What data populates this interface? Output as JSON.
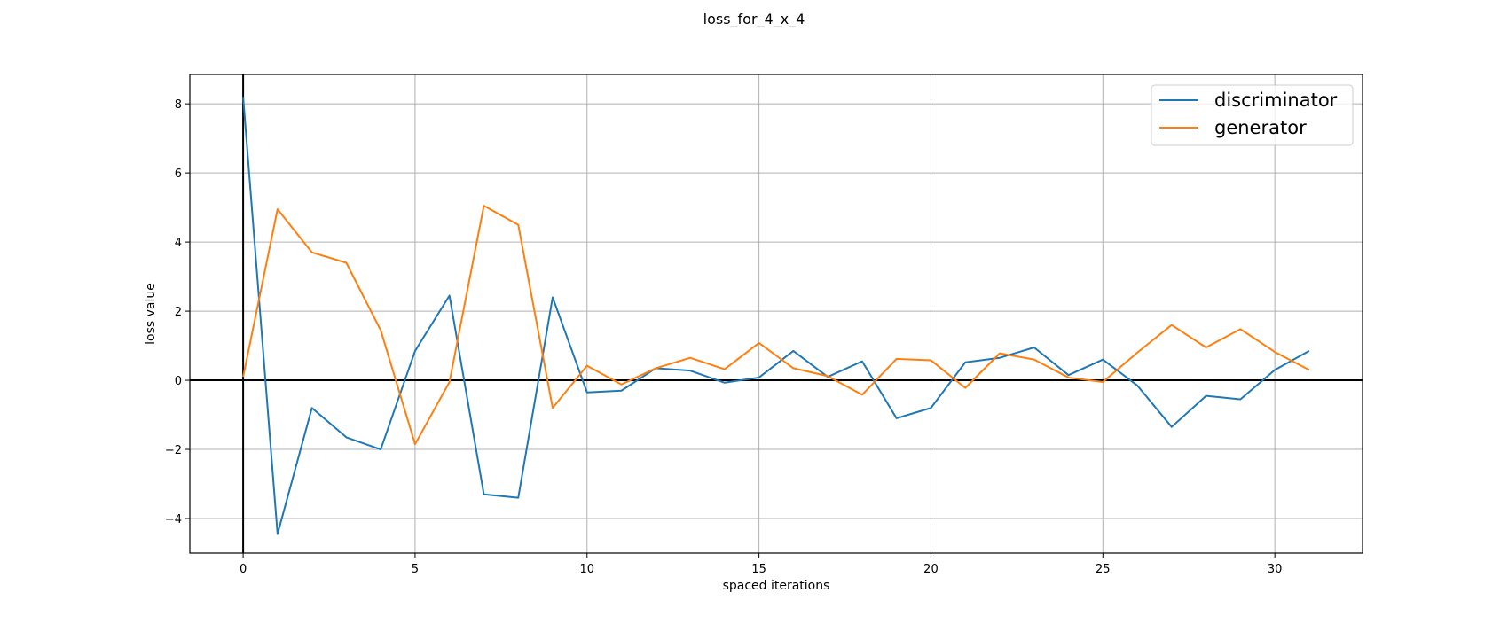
{
  "chart_data": {
    "type": "line",
    "title": "loss_for_4_x_4",
    "xlabel": "spaced iterations",
    "ylabel": "loss value",
    "xlim": [
      -1.55,
      32.55
    ],
    "ylim": [
      -5.0,
      8.85
    ],
    "xticks": [
      0,
      5,
      10,
      15,
      20,
      25,
      30
    ],
    "xtick_labels": [
      "0",
      "5",
      "10",
      "15",
      "20",
      "25",
      "30"
    ],
    "yticks": [
      -4,
      -2,
      0,
      2,
      4,
      6,
      8
    ],
    "ytick_labels": [
      "−4",
      "−2",
      "0",
      "2",
      "4",
      "6",
      "8"
    ],
    "grid": true,
    "zero_lines": true,
    "legend_position": "top-right",
    "x": [
      0,
      1,
      2,
      3,
      4,
      5,
      6,
      7,
      8,
      9,
      10,
      11,
      12,
      13,
      14,
      15,
      16,
      17,
      18,
      19,
      20,
      21,
      22,
      23,
      24,
      25,
      26,
      27,
      28,
      29,
      30,
      31
    ],
    "series": [
      {
        "name": "discriminator",
        "color": "#1f77b4",
        "values": [
          8.2,
          -4.45,
          -0.8,
          -1.65,
          -2.0,
          0.85,
          2.45,
          -3.3,
          -3.4,
          2.4,
          -0.35,
          -0.3,
          0.35,
          0.28,
          -0.07,
          0.08,
          0.85,
          0.1,
          0.55,
          -1.1,
          -0.8,
          0.52,
          0.65,
          0.95,
          0.15,
          0.6,
          -0.15,
          -1.35,
          -0.45,
          -0.55,
          0.3,
          0.85
        ]
      },
      {
        "name": "generator",
        "color": "#ff7f0e",
        "values": [
          0.1,
          4.95,
          3.7,
          3.4,
          1.45,
          -1.85,
          -0.05,
          5.05,
          4.5,
          -0.8,
          0.42,
          -0.12,
          0.35,
          0.65,
          0.32,
          1.08,
          0.35,
          0.12,
          -0.42,
          0.62,
          0.58,
          -0.22,
          0.78,
          0.6,
          0.08,
          -0.05,
          0.8,
          1.6,
          0.95,
          1.48,
          0.82,
          0.3
        ]
      }
    ]
  }
}
